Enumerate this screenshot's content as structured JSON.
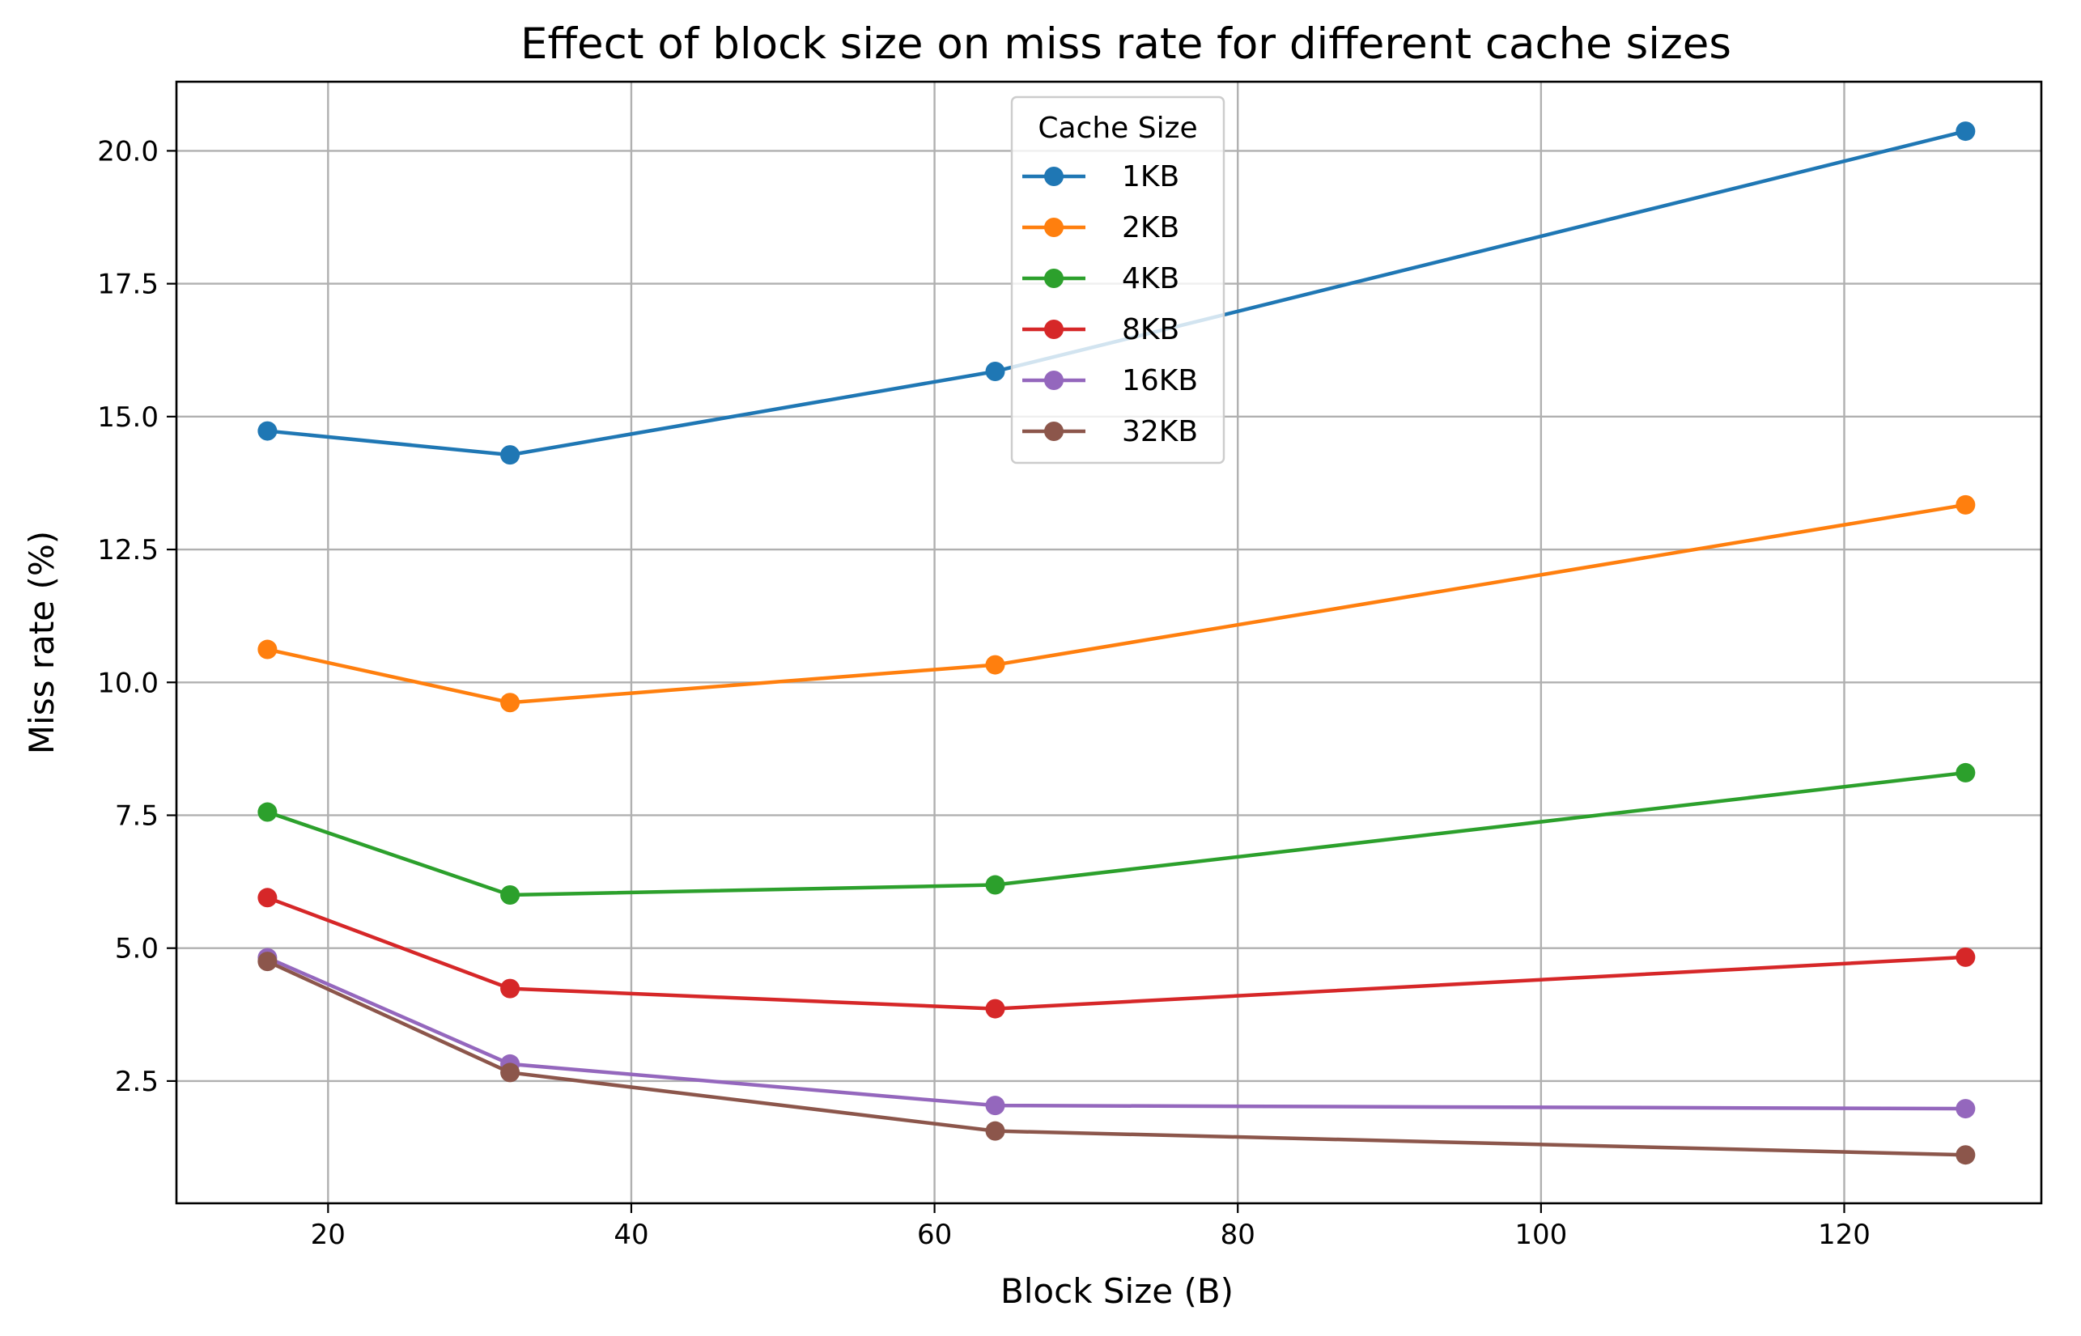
{
  "chart_data": {
    "type": "line",
    "title": "Effect of block size on miss rate for different cache sizes",
    "xlabel": "Block Size (B)",
    "ylabel": "Miss rate (%)",
    "xlim": [
      10,
      133
    ],
    "ylim": [
      0.2,
      21.3
    ],
    "x_ticks": [
      20,
      40,
      60,
      80,
      100,
      120
    ],
    "x_tick_labels": [
      "20",
      "40",
      "60",
      "80",
      "100",
      "120"
    ],
    "y_ticks": [
      2.5,
      5.0,
      7.5,
      10.0,
      12.5,
      15.0,
      17.5,
      20.0
    ],
    "y_tick_labels": [
      "2.5",
      "5.0",
      "7.5",
      "10.0",
      "12.5",
      "15.0",
      "17.5",
      "20.0"
    ],
    "grid": true,
    "legend": {
      "title": "Cache Size",
      "placement": "upper-center"
    },
    "x": [
      16,
      32,
      64,
      128
    ],
    "series": [
      {
        "name": "1KB",
        "color": "#1f77b4",
        "values": [
          14.73,
          14.28,
          15.85,
          20.37
        ]
      },
      {
        "name": "2KB",
        "color": "#ff7f0e",
        "values": [
          10.62,
          9.62,
          10.33,
          13.34
        ]
      },
      {
        "name": "4KB",
        "color": "#2ca02c",
        "values": [
          7.56,
          6.0,
          6.19,
          8.3
        ]
      },
      {
        "name": "8KB",
        "color": "#d62728",
        "values": [
          5.95,
          4.24,
          3.86,
          4.83
        ]
      },
      {
        "name": "16KB",
        "color": "#9467bd",
        "values": [
          4.82,
          2.82,
          2.04,
          1.98
        ]
      },
      {
        "name": "32KB",
        "color": "#8c564b",
        "values": [
          4.75,
          2.66,
          1.56,
          1.11
        ]
      }
    ]
  }
}
